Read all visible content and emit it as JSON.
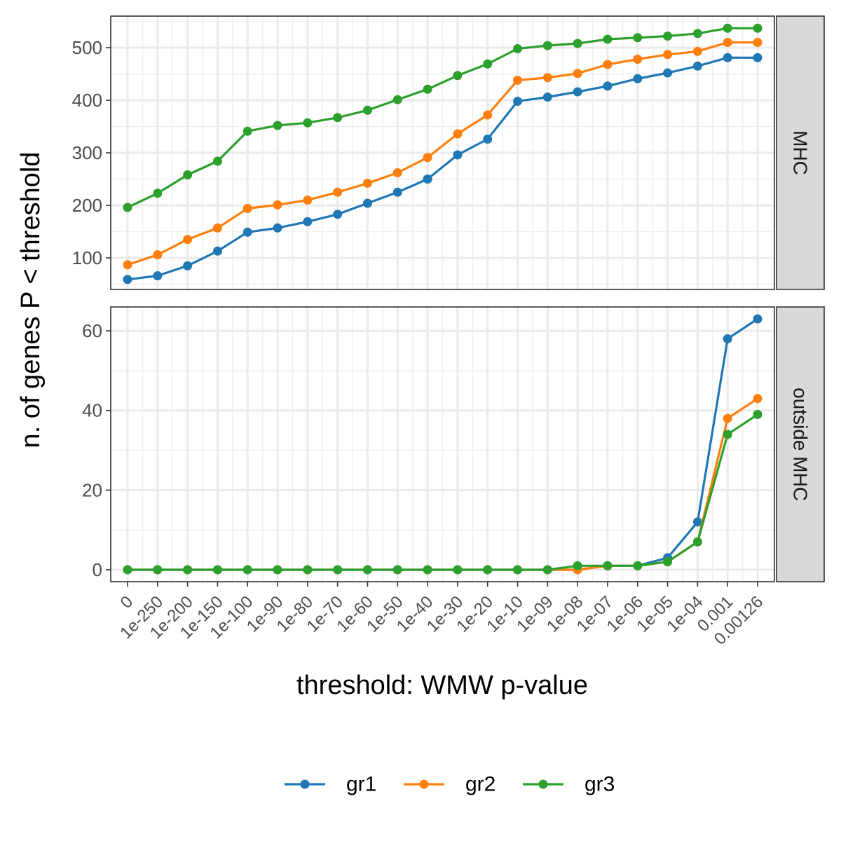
{
  "chart_data": {
    "type": "line",
    "xlabel": "threshold: WMW p-value",
    "ylabel": "n. of genes P < threshold",
    "categories": [
      "0",
      "1e-250",
      "1e-200",
      "1e-150",
      "1e-100",
      "1e-90",
      "1e-80",
      "1e-70",
      "1e-60",
      "1e-50",
      "1e-40",
      "1e-30",
      "1e-20",
      "1e-10",
      "1e-09",
      "1e-08",
      "1e-07",
      "1e-06",
      "1e-05",
      "1e-04",
      "0.001",
      "0.00126"
    ],
    "legend": {
      "position": "bottom"
    },
    "grid": true,
    "series_meta": [
      {
        "name": "gr1",
        "color": "#1f77b4"
      },
      {
        "name": "gr2",
        "color": "#ff7f0e"
      },
      {
        "name": "gr3",
        "color": "#2ca02c"
      }
    ],
    "panels": [
      {
        "strip": "MHC",
        "ylim": [
          40,
          560
        ],
        "yticks": [
          100,
          200,
          300,
          400,
          500
        ],
        "series": [
          {
            "name": "gr1",
            "values": [
              59,
              66,
              85,
              113,
              149,
              157,
              169,
              183,
              204,
              225,
              250,
              296,
              326,
              398,
              406,
              416,
              427,
              441,
              452,
              465,
              481,
              481
            ]
          },
          {
            "name": "gr2",
            "values": [
              87,
              106,
              135,
              157,
              194,
              201,
              210,
              225,
              242,
              262,
              291,
              336,
              372,
              438,
              443,
              451,
              468,
              478,
              487,
              493,
              510,
              510
            ]
          },
          {
            "name": "gr3",
            "values": [
              196,
              223,
              258,
              284,
              341,
              352,
              357,
              367,
              381,
              401,
              421,
              447,
              469,
              498,
              504,
              508,
              516,
              519,
              522,
              527,
              537,
              537
            ]
          }
        ]
      },
      {
        "strip": "outside MHC",
        "ylim": [
          -3,
          66
        ],
        "yticks": [
          0,
          20,
          40,
          60
        ],
        "series": [
          {
            "name": "gr1",
            "values": [
              0,
              0,
              0,
              0,
              0,
              0,
              0,
              0,
              0,
              0,
              0,
              0,
              0,
              0,
              0,
              0,
              1,
              1,
              3,
              12,
              58,
              63
            ]
          },
          {
            "name": "gr2",
            "values": [
              0,
              0,
              0,
              0,
              0,
              0,
              0,
              0,
              0,
              0,
              0,
              0,
              0,
              0,
              0,
              0,
              1,
              1,
              2,
              7,
              38,
              43
            ]
          },
          {
            "name": "gr3",
            "values": [
              0,
              0,
              0,
              0,
              0,
              0,
              0,
              0,
              0,
              0,
              0,
              0,
              0,
              0,
              0,
              1,
              1,
              1,
              2,
              7,
              34,
              39
            ]
          }
        ]
      }
    ]
  }
}
